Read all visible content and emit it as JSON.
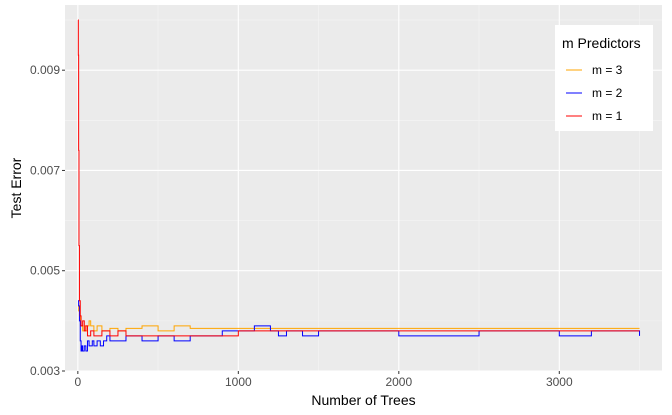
{
  "chart_data": {
    "type": "line",
    "title": "",
    "xlabel": "Number of Trees",
    "ylabel": "Test Error",
    "xlim": [
      -80,
      3640
    ],
    "ylim": [
      0.003,
      0.0103
    ],
    "x_ticks": [
      0,
      1000,
      2000,
      3000
    ],
    "x_tick_labels": [
      "0",
      "1000",
      "2000",
      "3000"
    ],
    "y_ticks": [
      0.003,
      0.005,
      0.007,
      0.009
    ],
    "y_tick_labels": [
      "0.003",
      "0.005",
      "0.007",
      "0.009"
    ],
    "grid": true,
    "legend": {
      "title": "m Predictors",
      "position": "top-right"
    },
    "series": [
      {
        "name": "m = 3",
        "color": "#FFA500",
        "x": [
          1,
          5,
          10,
          15,
          20,
          30,
          40,
          50,
          60,
          70,
          80,
          90,
          100,
          120,
          150,
          200,
          250,
          300,
          400,
          500,
          600,
          700,
          750,
          800,
          1000,
          1500,
          2000,
          2500,
          3000,
          3500
        ],
        "y": [
          0.0043,
          0.0042,
          0.0041,
          0.004,
          0.0039,
          0.0038,
          0.0039,
          0.0038,
          0.0039,
          0.004,
          0.0039,
          0.0039,
          0.0038,
          0.0039,
          0.0038,
          0.00385,
          0.0038,
          0.00385,
          0.0039,
          0.0038,
          0.0039,
          0.00385,
          0.00385,
          0.00385,
          0.00385,
          0.00385,
          0.00385,
          0.00385,
          0.00385,
          0.00385
        ]
      },
      {
        "name": "m = 2",
        "color": "#0000FF",
        "x": [
          1,
          5,
          10,
          15,
          20,
          25,
          30,
          40,
          50,
          60,
          70,
          80,
          90,
          100,
          120,
          140,
          160,
          180,
          200,
          250,
          300,
          400,
          500,
          600,
          700,
          800,
          900,
          1000,
          1050,
          1100,
          1150,
          1200,
          1250,
          1300,
          1400,
          1500,
          2000,
          2500,
          3000,
          3200,
          3500
        ],
        "y": [
          0.0044,
          0.0043,
          0.004,
          0.0036,
          0.0034,
          0.0035,
          0.0034,
          0.0035,
          0.0034,
          0.0036,
          0.0035,
          0.0035,
          0.0036,
          0.0035,
          0.0036,
          0.0035,
          0.0036,
          0.0037,
          0.0036,
          0.0036,
          0.0037,
          0.0036,
          0.0037,
          0.0036,
          0.0037,
          0.0037,
          0.0038,
          0.0038,
          0.0038,
          0.0039,
          0.0039,
          0.0038,
          0.0037,
          0.0038,
          0.0037,
          0.0038,
          0.0037,
          0.0038,
          0.0037,
          0.0038,
          0.0037
        ]
      },
      {
        "name": "m = 1",
        "color": "#FF0000",
        "x": [
          1,
          3,
          5,
          7,
          10,
          15,
          20,
          30,
          40,
          50,
          60,
          80,
          100,
          150,
          200,
          250,
          300,
          400,
          500,
          600,
          700,
          800,
          1000,
          1500,
          2000,
          2500,
          3000,
          3500
        ],
        "y": [
          0.01,
          0.0093,
          0.0074,
          0.0055,
          0.0044,
          0.0041,
          0.0039,
          0.004,
          0.0038,
          0.0039,
          0.0037,
          0.0038,
          0.0037,
          0.0038,
          0.0037,
          0.0038,
          0.0037,
          0.0037,
          0.0037,
          0.0037,
          0.0037,
          0.0037,
          0.0038,
          0.0038,
          0.0038,
          0.0038,
          0.0038,
          0.0038
        ]
      }
    ]
  }
}
